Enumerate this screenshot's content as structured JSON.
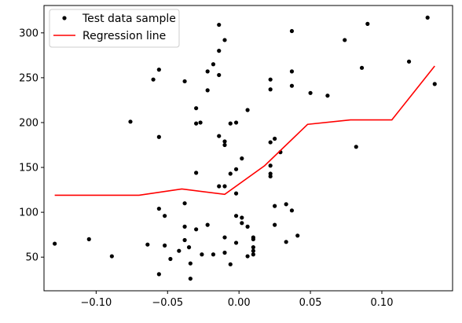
{
  "chart_data": {
    "type": "scatter",
    "xlim": [
      -0.1365,
      0.1495
    ],
    "ylim": [
      12.5,
      330.5
    ],
    "grid": false,
    "legend_position": "top-left",
    "x_ticks": [
      -0.1,
      -0.05,
      0.0,
      0.05,
      0.1
    ],
    "x_tick_labels": [
      "−0.10",
      "−0.05",
      "0.00",
      "0.05",
      "0.10"
    ],
    "y_ticks": [
      50,
      100,
      150,
      200,
      250,
      300
    ],
    "y_tick_labels": [
      "50",
      "100",
      "150",
      "200",
      "250",
      "300"
    ],
    "colors": {
      "points": "#000000",
      "line": "#ff0000",
      "frame": "#000000"
    },
    "series": [
      {
        "name": "Test data sample",
        "kind": "scatter",
        "points": [
          [
            -0.129,
            65
          ],
          [
            -0.105,
            70
          ],
          [
            -0.089,
            51
          ],
          [
            -0.076,
            201
          ],
          [
            -0.064,
            64
          ],
          [
            -0.06,
            248
          ],
          [
            -0.056,
            259
          ],
          [
            -0.056,
            184
          ],
          [
            -0.056,
            104
          ],
          [
            -0.056,
            31
          ],
          [
            -0.052,
            96
          ],
          [
            -0.052,
            63
          ],
          [
            -0.048,
            48
          ],
          [
            -0.042,
            57
          ],
          [
            -0.038,
            246
          ],
          [
            -0.038,
            110
          ],
          [
            -0.038,
            84
          ],
          [
            -0.038,
            69
          ],
          [
            -0.035,
            61
          ],
          [
            -0.034,
            43
          ],
          [
            -0.034,
            26
          ],
          [
            -0.03,
            216
          ],
          [
            -0.03,
            199
          ],
          [
            -0.03,
            144
          ],
          [
            -0.03,
            81
          ],
          [
            -0.027,
            200
          ],
          [
            -0.026,
            53
          ],
          [
            -0.022,
            257
          ],
          [
            -0.022,
            236
          ],
          [
            -0.022,
            86
          ],
          [
            -0.018,
            265
          ],
          [
            -0.018,
            53
          ],
          [
            -0.014,
            309
          ],
          [
            -0.014,
            280
          ],
          [
            -0.014,
            253
          ],
          [
            -0.014,
            185
          ],
          [
            -0.014,
            129
          ],
          [
            -0.01,
            292
          ],
          [
            -0.01,
            179
          ],
          [
            -0.01,
            175
          ],
          [
            -0.01,
            129
          ],
          [
            -0.01,
            72
          ],
          [
            -0.01,
            55
          ],
          [
            -0.006,
            199
          ],
          [
            -0.006,
            143
          ],
          [
            -0.006,
            42
          ],
          [
            -0.002,
            200
          ],
          [
            -0.002,
            148
          ],
          [
            -0.002,
            121
          ],
          [
            -0.002,
            96
          ],
          [
            -0.002,
            66
          ],
          [
            0.002,
            160
          ],
          [
            0.002,
            94
          ],
          [
            0.002,
            88
          ],
          [
            0.006,
            214
          ],
          [
            0.006,
            84
          ],
          [
            0.006,
            51
          ],
          [
            0.01,
            72
          ],
          [
            0.01,
            70
          ],
          [
            0.01,
            61
          ],
          [
            0.01,
            57
          ],
          [
            0.01,
            53
          ],
          [
            0.022,
            248
          ],
          [
            0.022,
            237
          ],
          [
            0.022,
            178
          ],
          [
            0.022,
            152
          ],
          [
            0.022,
            143
          ],
          [
            0.022,
            140
          ],
          [
            0.025,
            182
          ],
          [
            0.025,
            107
          ],
          [
            0.025,
            86
          ],
          [
            0.029,
            167
          ],
          [
            0.033,
            109
          ],
          [
            0.033,
            67
          ],
          [
            0.037,
            302
          ],
          [
            0.037,
            257
          ],
          [
            0.037,
            241
          ],
          [
            0.037,
            102
          ],
          [
            0.041,
            74
          ],
          [
            0.05,
            233
          ],
          [
            0.062,
            230
          ],
          [
            0.074,
            292
          ],
          [
            0.082,
            173
          ],
          [
            0.086,
            261
          ],
          [
            0.09,
            310
          ],
          [
            0.119,
            268
          ],
          [
            0.132,
            317
          ],
          [
            0.137,
            243
          ]
        ]
      },
      {
        "name": "Regression line",
        "kind": "line",
        "points": [
          [
            -0.129,
            119
          ],
          [
            -0.07,
            119
          ],
          [
            -0.04,
            126
          ],
          [
            -0.01,
            120
          ],
          [
            0.018,
            152
          ],
          [
            0.048,
            198
          ],
          [
            0.078,
            203
          ],
          [
            0.107,
            203
          ],
          [
            0.137,
            263
          ]
        ]
      }
    ]
  }
}
